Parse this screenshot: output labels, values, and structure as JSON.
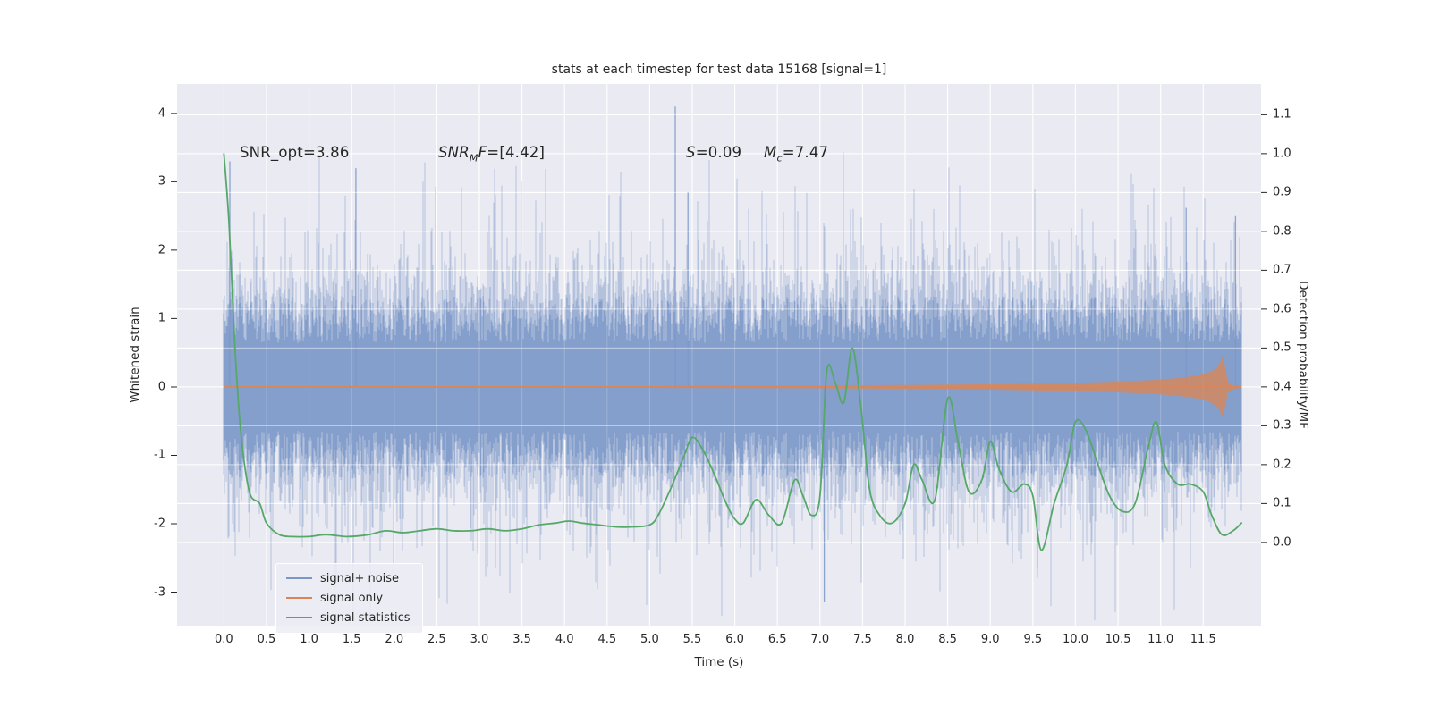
{
  "figure": {
    "title": "stats at each timestep for test data 15168 [signal=1]",
    "background": "#ffffff",
    "axes_background": "#eaeaf2",
    "grid_color": "#ffffff",
    "text_color": "#262626"
  },
  "axes": {
    "xlabel": "Time (s)",
    "ylabel_left": "Whitened strain",
    "ylabel_right": "Detection probability/MF",
    "xticks": [
      "0.0",
      "0.5",
      "1.0",
      "1.5",
      "2.0",
      "2.5",
      "3.0",
      "3.5",
      "4.0",
      "4.5",
      "5.0",
      "5.5",
      "6.0",
      "6.5",
      "7.0",
      "7.5",
      "8.0",
      "8.5",
      "9.0",
      "9.5",
      "10.0",
      "10.5",
      "11.0",
      "11.5"
    ],
    "yticks_left": [
      "-3",
      "-2",
      "-1",
      "0",
      "1",
      "2",
      "3",
      "4"
    ],
    "yticks_right": [
      "0.0",
      "0.1",
      "0.2",
      "0.3",
      "0.4",
      "0.5",
      "0.6",
      "0.7",
      "0.8",
      "0.9",
      "1.0",
      "1.1"
    ]
  },
  "annotations": {
    "snr_opt": "SNR_opt=3.86",
    "snr_mf": {
      "pre": "SNR",
      "sub": "M",
      "post": "F",
      "value": "=[4.42]"
    },
    "s": {
      "pre": "S",
      "value": "=0.09"
    },
    "mc": {
      "pre": "M",
      "sub": "c",
      "value": "=7.47"
    }
  },
  "legend": {
    "position": "lower left",
    "entries": [
      {
        "label": "signal+ noise",
        "color": "#7b97c8"
      },
      {
        "label": "signal only",
        "color": "#dd8452"
      },
      {
        "label": "signal statistics",
        "color": "#55a868"
      }
    ]
  },
  "chart_data": {
    "type": "line",
    "title": "stats at each timestep for test data 15168 [signal=1]",
    "xlabel": "Time (s)",
    "ylabel_left": "Whitened strain",
    "ylabel_right": "Detection probability/MF",
    "grid": true,
    "legend_position": "lower left",
    "xlim": [
      -0.55,
      12.18
    ],
    "ylim_left": [
      -3.49,
      4.43
    ],
    "ylim_right": [
      -0.214,
      1.179
    ],
    "x_range_s": [
      0.0,
      11.95
    ],
    "xticks": [
      0.0,
      0.5,
      1.0,
      1.5,
      2.0,
      2.5,
      3.0,
      3.5,
      4.0,
      4.5,
      5.0,
      5.5,
      6.0,
      6.5,
      7.0,
      7.5,
      8.0,
      8.5,
      9.0,
      9.5,
      10.0,
      10.5,
      11.0,
      11.5
    ],
    "yticks_left": [
      -3,
      -2,
      -1,
      0,
      1,
      2,
      3,
      4
    ],
    "yticks_right": [
      0.0,
      0.1,
      0.2,
      0.3,
      0.4,
      0.5,
      0.6,
      0.7,
      0.8,
      0.9,
      1.0,
      1.1
    ],
    "series": [
      {
        "name": "signal+ noise",
        "axis": "left",
        "color": "#7b97c8",
        "style": "noise_band",
        "noise": {
          "seed": 15168,
          "mean": 0,
          "core_halfwidth_range": [
            0.7,
            1.45
          ],
          "tail_scale": 0.45,
          "tail_cap": 2.0
        },
        "notable_spikes": [
          [
            0.07,
            3.3
          ],
          [
            1.55,
            3.2
          ],
          [
            5.3,
            4.1
          ],
          [
            5.45,
            2.85
          ],
          [
            7.05,
            -3.15
          ],
          [
            9.55,
            -2.65
          ],
          [
            11.3,
            2.62
          ],
          [
            11.88,
            2.5
          ]
        ]
      },
      {
        "name": "signal only",
        "axis": "left",
        "color": "#dd8452",
        "style": "chirp",
        "baseline": 0,
        "envelope": [
          [
            0,
            0.012
          ],
          [
            5,
            0.014
          ],
          [
            7,
            0.02
          ],
          [
            8,
            0.028
          ],
          [
            9,
            0.04
          ],
          [
            9.8,
            0.055
          ],
          [
            10.4,
            0.075
          ],
          [
            10.9,
            0.1
          ],
          [
            11.2,
            0.13
          ],
          [
            11.45,
            0.17
          ],
          [
            11.6,
            0.23
          ],
          [
            11.68,
            0.31
          ],
          [
            11.73,
            0.45
          ],
          [
            11.76,
            0.28
          ],
          [
            11.79,
            0.08
          ],
          [
            11.85,
            0.03
          ],
          [
            11.95,
            0.015
          ]
        ]
      },
      {
        "name": "signal statistics",
        "axis": "right",
        "color": "#55a868",
        "style": "line",
        "points": [
          [
            0.0,
            1.0
          ],
          [
            0.06,
            0.82
          ],
          [
            0.13,
            0.5
          ],
          [
            0.2,
            0.28
          ],
          [
            0.3,
            0.13
          ],
          [
            0.42,
            0.1
          ],
          [
            0.5,
            0.05
          ],
          [
            0.65,
            0.02
          ],
          [
            0.8,
            0.015
          ],
          [
            1.0,
            0.015
          ],
          [
            1.2,
            0.02
          ],
          [
            1.45,
            0.015
          ],
          [
            1.7,
            0.02
          ],
          [
            1.9,
            0.03
          ],
          [
            2.1,
            0.025
          ],
          [
            2.3,
            0.03
          ],
          [
            2.5,
            0.035
          ],
          [
            2.7,
            0.03
          ],
          [
            2.9,
            0.03
          ],
          [
            3.1,
            0.035
          ],
          [
            3.3,
            0.03
          ],
          [
            3.5,
            0.035
          ],
          [
            3.7,
            0.045
          ],
          [
            3.9,
            0.05
          ],
          [
            4.05,
            0.055
          ],
          [
            4.2,
            0.05
          ],
          [
            4.4,
            0.045
          ],
          [
            4.6,
            0.04
          ],
          [
            4.8,
            0.04
          ],
          [
            5.0,
            0.045
          ],
          [
            5.1,
            0.07
          ],
          [
            5.25,
            0.14
          ],
          [
            5.4,
            0.22
          ],
          [
            5.5,
            0.27
          ],
          [
            5.62,
            0.24
          ],
          [
            5.75,
            0.18
          ],
          [
            5.9,
            0.1
          ],
          [
            6.0,
            0.06
          ],
          [
            6.1,
            0.05
          ],
          [
            6.25,
            0.11
          ],
          [
            6.4,
            0.07
          ],
          [
            6.55,
            0.05
          ],
          [
            6.7,
            0.16
          ],
          [
            6.8,
            0.12
          ],
          [
            6.9,
            0.07
          ],
          [
            7.0,
            0.12
          ],
          [
            7.08,
            0.44
          ],
          [
            7.18,
            0.41
          ],
          [
            7.28,
            0.36
          ],
          [
            7.38,
            0.5
          ],
          [
            7.48,
            0.35
          ],
          [
            7.58,
            0.14
          ],
          [
            7.7,
            0.07
          ],
          [
            7.85,
            0.05
          ],
          [
            8.0,
            0.1
          ],
          [
            8.1,
            0.2
          ],
          [
            8.2,
            0.16
          ],
          [
            8.35,
            0.11
          ],
          [
            8.5,
            0.37
          ],
          [
            8.62,
            0.26
          ],
          [
            8.75,
            0.13
          ],
          [
            8.9,
            0.16
          ],
          [
            9.0,
            0.26
          ],
          [
            9.1,
            0.19
          ],
          [
            9.25,
            0.13
          ],
          [
            9.4,
            0.15
          ],
          [
            9.5,
            0.12
          ],
          [
            9.6,
            -0.02
          ],
          [
            9.75,
            0.1
          ],
          [
            9.9,
            0.2
          ],
          [
            10.0,
            0.31
          ],
          [
            10.12,
            0.29
          ],
          [
            10.25,
            0.21
          ],
          [
            10.4,
            0.12
          ],
          [
            10.55,
            0.08
          ],
          [
            10.7,
            0.1
          ],
          [
            10.85,
            0.24
          ],
          [
            10.95,
            0.31
          ],
          [
            11.05,
            0.2
          ],
          [
            11.2,
            0.15
          ],
          [
            11.35,
            0.15
          ],
          [
            11.5,
            0.13
          ],
          [
            11.6,
            0.07
          ],
          [
            11.72,
            0.02
          ],
          [
            11.85,
            0.03
          ],
          [
            11.95,
            0.05
          ]
        ]
      }
    ]
  }
}
